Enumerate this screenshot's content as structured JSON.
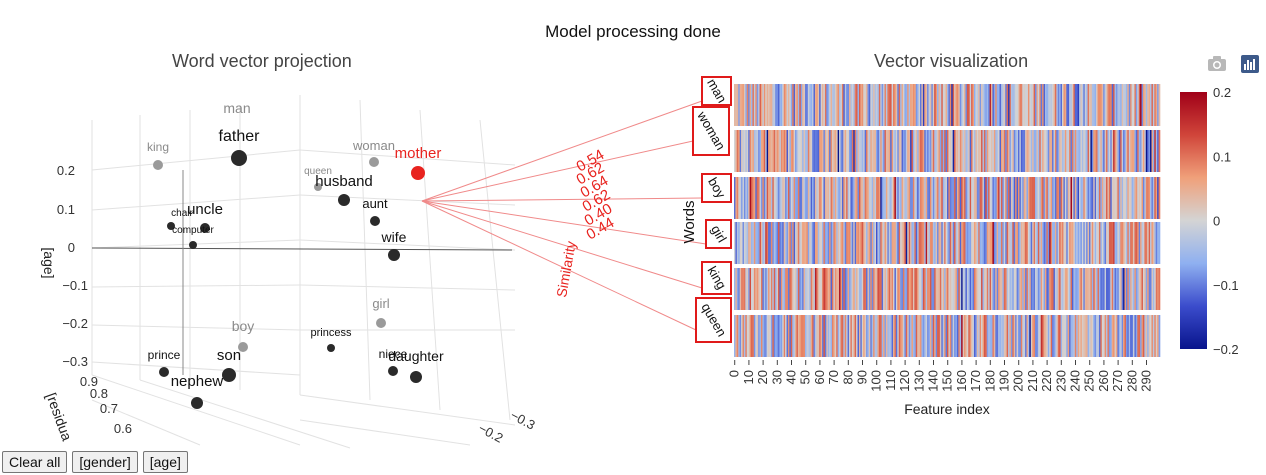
{
  "status": "Model processing done",
  "left_title": "Word vector projection",
  "right_title": "Vector visualization",
  "buttons": {
    "clear_all": "Clear all",
    "gender": "[gender]",
    "age": "[age]"
  },
  "projection": {
    "axis_label_age": "[age]",
    "axis_label_residual": "[residua",
    "y_ticks": [
      "0.2",
      "0.1",
      "0",
      "−0.1",
      "−0.2",
      "−0.3"
    ],
    "residual_ticks": [
      "0.9",
      "0.8",
      "0.7",
      "0.6"
    ],
    "depth_ticks": [
      "−0.3",
      "−0.2"
    ],
    "selected_word": "mother",
    "words": [
      {
        "text": "man",
        "kind": "gray"
      },
      {
        "text": "father",
        "kind": "black"
      },
      {
        "text": "king",
        "kind": "gray"
      },
      {
        "text": "woman",
        "kind": "gray"
      },
      {
        "text": "mother",
        "kind": "selected"
      },
      {
        "text": "queen",
        "kind": "gray"
      },
      {
        "text": "husband",
        "kind": "black"
      },
      {
        "text": "aunt",
        "kind": "black"
      },
      {
        "text": "wife",
        "kind": "black"
      },
      {
        "text": "uncle",
        "kind": "black"
      },
      {
        "text": "chair",
        "kind": "black"
      },
      {
        "text": "computer",
        "kind": "black"
      },
      {
        "text": "girl",
        "kind": "gray"
      },
      {
        "text": "boy",
        "kind": "gray"
      },
      {
        "text": "princess",
        "kind": "black"
      },
      {
        "text": "prince",
        "kind": "black"
      },
      {
        "text": "son",
        "kind": "black"
      },
      {
        "text": "niece",
        "kind": "black"
      },
      {
        "text": "daughter",
        "kind": "black"
      },
      {
        "text": "nephew",
        "kind": "black"
      }
    ]
  },
  "similarity": {
    "title": "Similarity",
    "values": [
      "0.54",
      "0.62",
      "0.64",
      "0.62",
      "0.40",
      "0.44"
    ]
  },
  "chart_data": {
    "type": "heatmap",
    "title": "Vector visualization",
    "xlabel": "Feature index",
    "ylabel": "Words",
    "rows": [
      "man",
      "woman",
      "boy",
      "girl",
      "king",
      "queen"
    ],
    "x_ticks": [
      "0",
      "10",
      "20",
      "30",
      "40",
      "50",
      "60",
      "70",
      "80",
      "90",
      "100",
      "110",
      "120",
      "130",
      "140",
      "150",
      "160",
      "170",
      "180",
      "190",
      "200",
      "210",
      "220",
      "230",
      "240",
      "250",
      "260",
      "270",
      "280",
      "290"
    ],
    "n_features": 300,
    "colorbar_ticks": [
      "0.2",
      "0.1",
      "0",
      "−0.1",
      "−0.2"
    ],
    "zmin": -0.2,
    "zmax": 0.2,
    "colorscale": [
      "#08148c",
      "#3b4ccc",
      "#8fb0f0",
      "#d4d4d4",
      "#f0a07a",
      "#d0453a",
      "#a00018"
    ]
  },
  "colors": {
    "selected": "#e8231f",
    "gray_point": "#9a9a9a",
    "black_point": "#2a2a2a",
    "link": "#f08a8a"
  }
}
